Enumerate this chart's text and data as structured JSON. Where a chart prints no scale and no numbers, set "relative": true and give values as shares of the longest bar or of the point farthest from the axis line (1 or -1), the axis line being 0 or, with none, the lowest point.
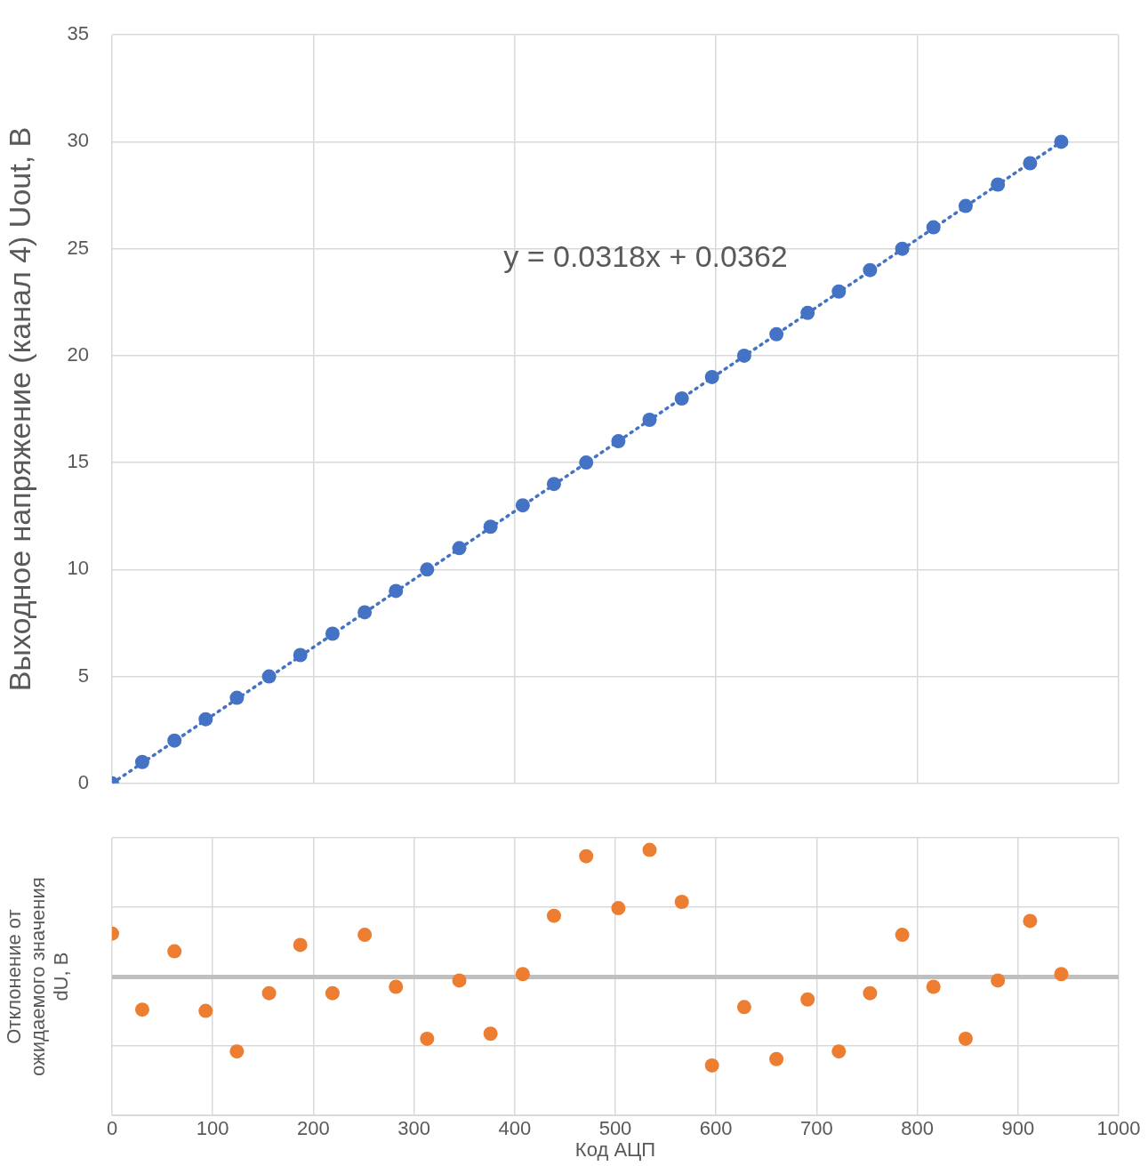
{
  "chart_data": [
    {
      "type": "scatter",
      "ylabel": "Выходное напряжение (канал 4) Uout, В",
      "xlim": [
        0,
        1000
      ],
      "xticks": [
        {
          "value": 0,
          "label": null
        },
        {
          "value": 200,
          "label": null
        },
        {
          "value": 400,
          "label": null
        },
        {
          "value": 600,
          "label": null
        },
        {
          "value": 800,
          "label": null
        },
        {
          "value": 1000,
          "label": null
        }
      ],
      "ylim": [
        0,
        35
      ],
      "yticks": [
        0,
        5,
        10,
        15,
        20,
        25,
        30,
        35
      ],
      "tick_labels": "y",
      "grid": true,
      "marker": "circle",
      "x": [
        0,
        30,
        62,
        93,
        124,
        156,
        187,
        219,
        251,
        282,
        313,
        345,
        376,
        408,
        439,
        471,
        503,
        534,
        566,
        596,
        628,
        660,
        691,
        722,
        753,
        785,
        816,
        848,
        880,
        912,
        943
      ],
      "series": [
        {
          "color": "#4472c4",
          "values": [
            0,
            1,
            2,
            3,
            4,
            5,
            6,
            7,
            8,
            9,
            10,
            11,
            12,
            13,
            14,
            15,
            16,
            17,
            18,
            19,
            20,
            21,
            22,
            23,
            24,
            25,
            26,
            27,
            28,
            29,
            30
          ]
        },
        {
          "type": "line",
          "x": [
            0,
            943
          ],
          "values": [
            0,
            30
          ],
          "color": "#4472c4",
          "line_style": "dotted",
          "marker": "none"
        }
      ],
      "annotations": [
        "y = 0.0318x + 0.0362"
      ]
    },
    {
      "type": "scatter",
      "xlabel": "Код АЦП",
      "ylabel": "Отклонение от\nожидаемого значения\ndU, В",
      "xlim": [
        0,
        1000
      ],
      "xticks": [
        0,
        100,
        200,
        300,
        400,
        500,
        600,
        700,
        800,
        900,
        1000
      ],
      "relative": true,
      "grid": true,
      "marker": "circle",
      "x": [
        0,
        30,
        62,
        93,
        124,
        156,
        187,
        219,
        251,
        282,
        313,
        345,
        376,
        408,
        439,
        471,
        503,
        534,
        566,
        596,
        628,
        660,
        691,
        722,
        753,
        785,
        816,
        848,
        880,
        912,
        943
      ],
      "series": [
        {
          "color": "#ed7d31",
          "values": [
            0.34,
            -0.26,
            0.2,
            -0.27,
            -0.59,
            -0.13,
            0.25,
            -0.13,
            0.33,
            -0.08,
            -0.49,
            -0.03,
            -0.45,
            0.02,
            0.48,
            0.95,
            0.54,
            1,
            0.59,
            -0.7,
            -0.24,
            -0.65,
            -0.18,
            -0.59,
            -0.13,
            0.33,
            -0.08,
            -0.49,
            -0.03,
            0.44,
            0.02
          ]
        }
      ]
    }
  ]
}
